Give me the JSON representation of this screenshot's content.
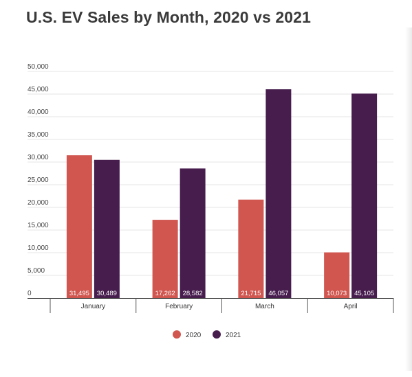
{
  "chart_data": {
    "type": "bar",
    "title": "U.S. EV Sales by Month, 2020 vs 2021",
    "categories": [
      "January",
      "February",
      "March",
      "April"
    ],
    "series": [
      {
        "name": "2020",
        "color": "#d0564f",
        "values": [
          31495,
          17262,
          21715,
          10073
        ]
      },
      {
        "name": "2021",
        "color": "#471d4e",
        "values": [
          30489,
          28582,
          46057,
          45105
        ]
      }
    ],
    "data_labels": [
      [
        "31,495",
        "17,262",
        "21,715",
        "10,073"
      ],
      [
        "30,489",
        "28,582",
        "46,057",
        "45,105"
      ]
    ],
    "ylim": [
      0,
      50000
    ],
    "yticks": [
      "0",
      "5,000",
      "10,000",
      "15,000",
      "20,000",
      "25,000",
      "30,000",
      "35,000",
      "40,000",
      "45,000",
      "50,000"
    ],
    "xlabel": "",
    "ylabel": "",
    "grid": true,
    "legend_position": "bottom-center"
  }
}
